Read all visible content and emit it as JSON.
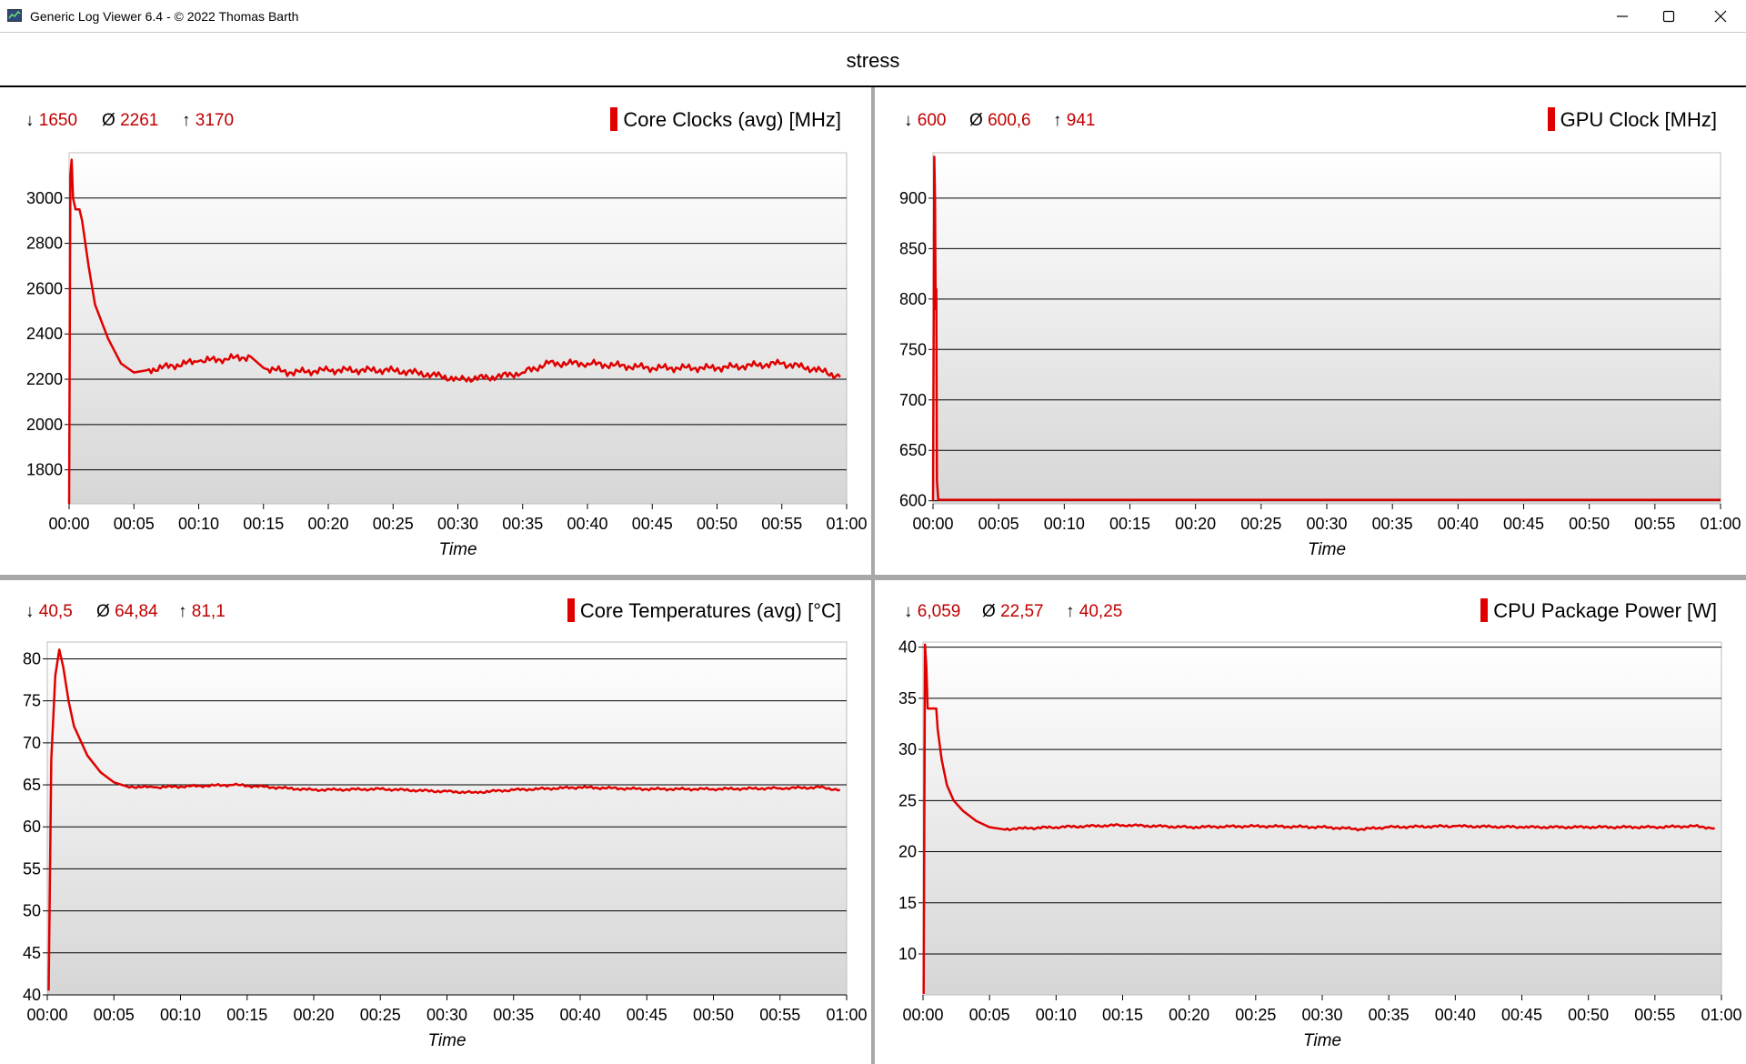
{
  "window": {
    "title": "Generic Log Viewer 6.4 - © 2022 Thomas Barth",
    "minimize_icon": "minimize-icon",
    "maximize_icon": "maximize-icon",
    "close_icon": "close-icon"
  },
  "log_title": "stress",
  "colors": {
    "series": "#e00000",
    "stat": "#c00000"
  },
  "panels": [
    {
      "stats": {
        "min_symbol": "↓",
        "min": "1650",
        "avg_symbol": "Ø",
        "avg": "2261",
        "max_symbol": "↑",
        "max": "3170"
      },
      "legend": "Core Clocks (avg) [MHz]",
      "xlabel": "Time"
    },
    {
      "stats": {
        "min_symbol": "↓",
        "min": "600",
        "avg_symbol": "Ø",
        "avg": "600,6",
        "max_symbol": "↑",
        "max": "941"
      },
      "legend": "GPU Clock [MHz]",
      "xlabel": "Time"
    },
    {
      "stats": {
        "min_symbol": "↓",
        "min": "40,5",
        "avg_symbol": "Ø",
        "avg": "64,84",
        "max_symbol": "↑",
        "max": "81,1"
      },
      "legend": "Core Temperatures (avg) [°C]",
      "xlabel": "Time"
    },
    {
      "stats": {
        "min_symbol": "↓",
        "min": "6,059",
        "avg_symbol": "Ø",
        "avg": "22,57",
        "max_symbol": "↑",
        "max": "40,25"
      },
      "legend": "CPU Package Power [W]",
      "xlabel": "Time"
    }
  ],
  "chart_data": [
    {
      "type": "line",
      "ylabel": "Core Clocks (avg) [MHz]",
      "xlabel": "Time",
      "xlim": [
        0,
        60
      ],
      "ylim": [
        1650,
        3200
      ],
      "grid": true,
      "x_tick_labels": [
        "00:00",
        "00:05",
        "00:10",
        "00:15",
        "00:20",
        "00:25",
        "00:30",
        "00:35",
        "00:40",
        "00:45",
        "00:50",
        "00:55",
        "01:00"
      ],
      "y_ticks": [
        1800,
        2000,
        2200,
        2400,
        2600,
        2800,
        3000
      ],
      "series": [
        {
          "x": [
            0,
            0.1,
            0.2,
            0.3,
            0.5,
            0.8,
            1.0,
            1.5,
            2,
            3,
            4,
            5,
            6,
            8,
            10,
            12,
            14,
            15,
            17,
            20,
            25,
            28,
            30,
            33,
            35,
            37,
            40,
            45,
            50,
            55,
            58,
            59.5
          ],
          "y": [
            1650,
            3100,
            3170,
            3000,
            2950,
            2950,
            2900,
            2700,
            2530,
            2380,
            2270,
            2230,
            2240,
            2260,
            2280,
            2290,
            2300,
            2250,
            2230,
            2240,
            2240,
            2220,
            2200,
            2210,
            2230,
            2270,
            2270,
            2250,
            2250,
            2270,
            2240,
            2210
          ]
        }
      ]
    },
    {
      "type": "line",
      "ylabel": "GPU Clock [MHz]",
      "xlabel": "Time",
      "xlim": [
        0,
        60
      ],
      "ylim": [
        597,
        945
      ],
      "grid": true,
      "x_tick_labels": [
        "00:00",
        "00:05",
        "00:10",
        "00:15",
        "00:20",
        "00:25",
        "00:30",
        "00:35",
        "00:40",
        "00:45",
        "00:50",
        "00:55",
        "01:00"
      ],
      "y_ticks": [
        600,
        650,
        700,
        750,
        800,
        850,
        900
      ],
      "series": [
        {
          "x": [
            0,
            0.1,
            0.15,
            0.2,
            0.25,
            0.3,
            0.4,
            60
          ],
          "y": [
            600,
            941,
            900,
            790,
            810,
            620,
            601,
            601
          ]
        }
      ]
    },
    {
      "type": "line",
      "ylabel": "Core Temperatures (avg) [°C]",
      "xlabel": "Time",
      "xlim": [
        0,
        60
      ],
      "ylim": [
        40,
        82
      ],
      "grid": true,
      "x_tick_labels": [
        "00:00",
        "00:05",
        "00:10",
        "00:15",
        "00:20",
        "00:25",
        "00:30",
        "00:35",
        "00:40",
        "00:45",
        "00:50",
        "00:55",
        "01:00"
      ],
      "y_ticks": [
        40,
        45,
        50,
        55,
        60,
        65,
        70,
        75,
        80
      ],
      "series": [
        {
          "x": [
            0.1,
            0.3,
            0.6,
            0.9,
            1.2,
            1.6,
            2,
            3,
            4,
            5,
            6,
            8,
            10,
            14,
            18,
            20,
            25,
            30,
            32,
            35,
            40,
            45,
            50,
            55,
            58,
            59.5
          ],
          "y": [
            40.5,
            68,
            78,
            81.1,
            79,
            75,
            72,
            68.5,
            66.5,
            65.3,
            64.8,
            64.7,
            64.8,
            65,
            64.6,
            64.4,
            64.5,
            64.2,
            64.1,
            64.4,
            64.7,
            64.5,
            64.5,
            64.6,
            64.7,
            64.4
          ]
        }
      ]
    },
    {
      "type": "line",
      "ylabel": "CPU Package Power [W]",
      "xlabel": "Time",
      "xlim": [
        0,
        60
      ],
      "ylim": [
        6,
        40.5
      ],
      "grid": true,
      "x_tick_labels": [
        "00:00",
        "00:05",
        "00:10",
        "00:15",
        "00:20",
        "00:25",
        "00:30",
        "00:35",
        "00:40",
        "00:45",
        "00:50",
        "00:55",
        "01:00"
      ],
      "y_ticks": [
        10,
        15,
        20,
        25,
        30,
        35,
        40
      ],
      "series": [
        {
          "x": [
            0.05,
            0.15,
            0.25,
            0.35,
            0.5,
            1.0,
            1.1,
            1.4,
            1.8,
            2.3,
            3,
            4,
            5,
            6,
            8,
            10,
            15,
            20,
            25,
            30,
            33,
            35,
            40,
            45,
            50,
            55,
            58,
            59.5
          ],
          "y": [
            6.1,
            40.25,
            38,
            34,
            34,
            34,
            32,
            29,
            26.5,
            25,
            24,
            23,
            22.4,
            22.2,
            22.3,
            22.4,
            22.6,
            22.4,
            22.5,
            22.4,
            22.2,
            22.4,
            22.5,
            22.4,
            22.4,
            22.4,
            22.5,
            22.3
          ]
        }
      ]
    }
  ]
}
